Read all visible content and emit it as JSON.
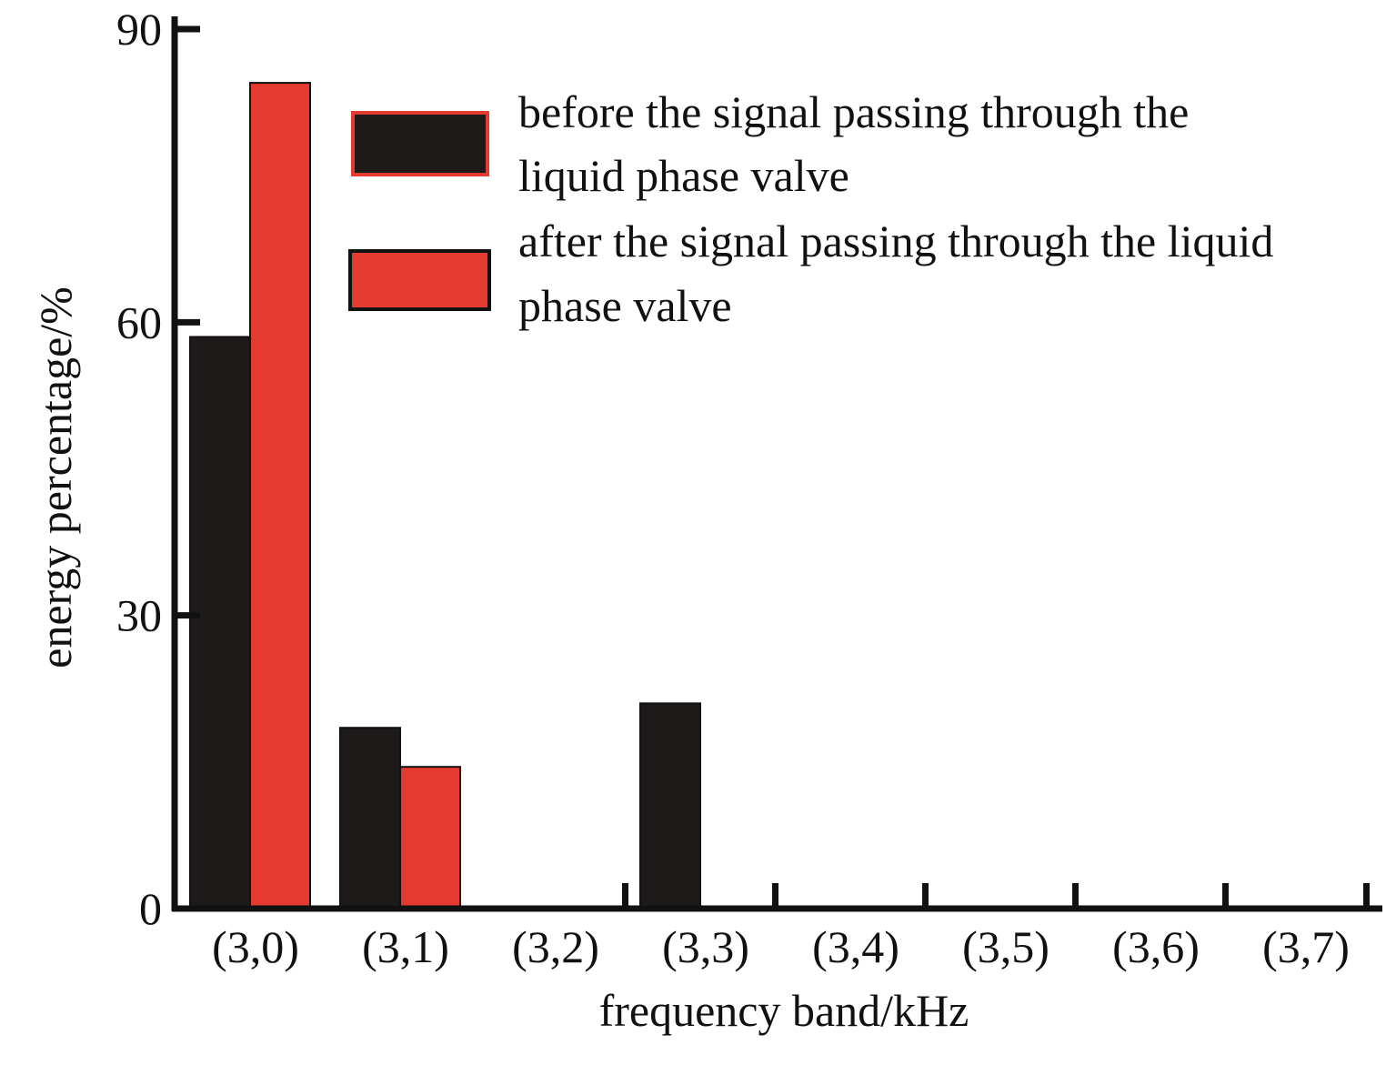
{
  "chart_data": {
    "type": "bar",
    "categories": [
      "(3,0)",
      "(3,1)",
      "(3,2)",
      "(3,3)",
      "(3,4)",
      "(3,5)",
      "(3,6)",
      "(3,7)"
    ],
    "series": [
      {
        "name": "before the signal passing through the liquid phase valve",
        "legend_lines": [
          "before the signal passing through the",
          "liquid phase valve"
        ],
        "color": "#1e1a19",
        "values": [
          58.5,
          18.5,
          0.2,
          21,
          0,
          0,
          0,
          0
        ]
      },
      {
        "name": "after the signal passing through the liquid phase valve",
        "legend_lines": [
          "after the signal passing through the liquid",
          "phase valve"
        ],
        "color": "#e53a30",
        "values": [
          84.5,
          14.5,
          0,
          0.2,
          0,
          0,
          0,
          0
        ]
      }
    ],
    "xlabel": "frequency band/kHz",
    "ylabel": "energy percentage/%",
    "ylim": [
      0,
      90
    ],
    "yticks": [
      0,
      30,
      60,
      90
    ],
    "grid": false,
    "legend_position": "top-right"
  }
}
